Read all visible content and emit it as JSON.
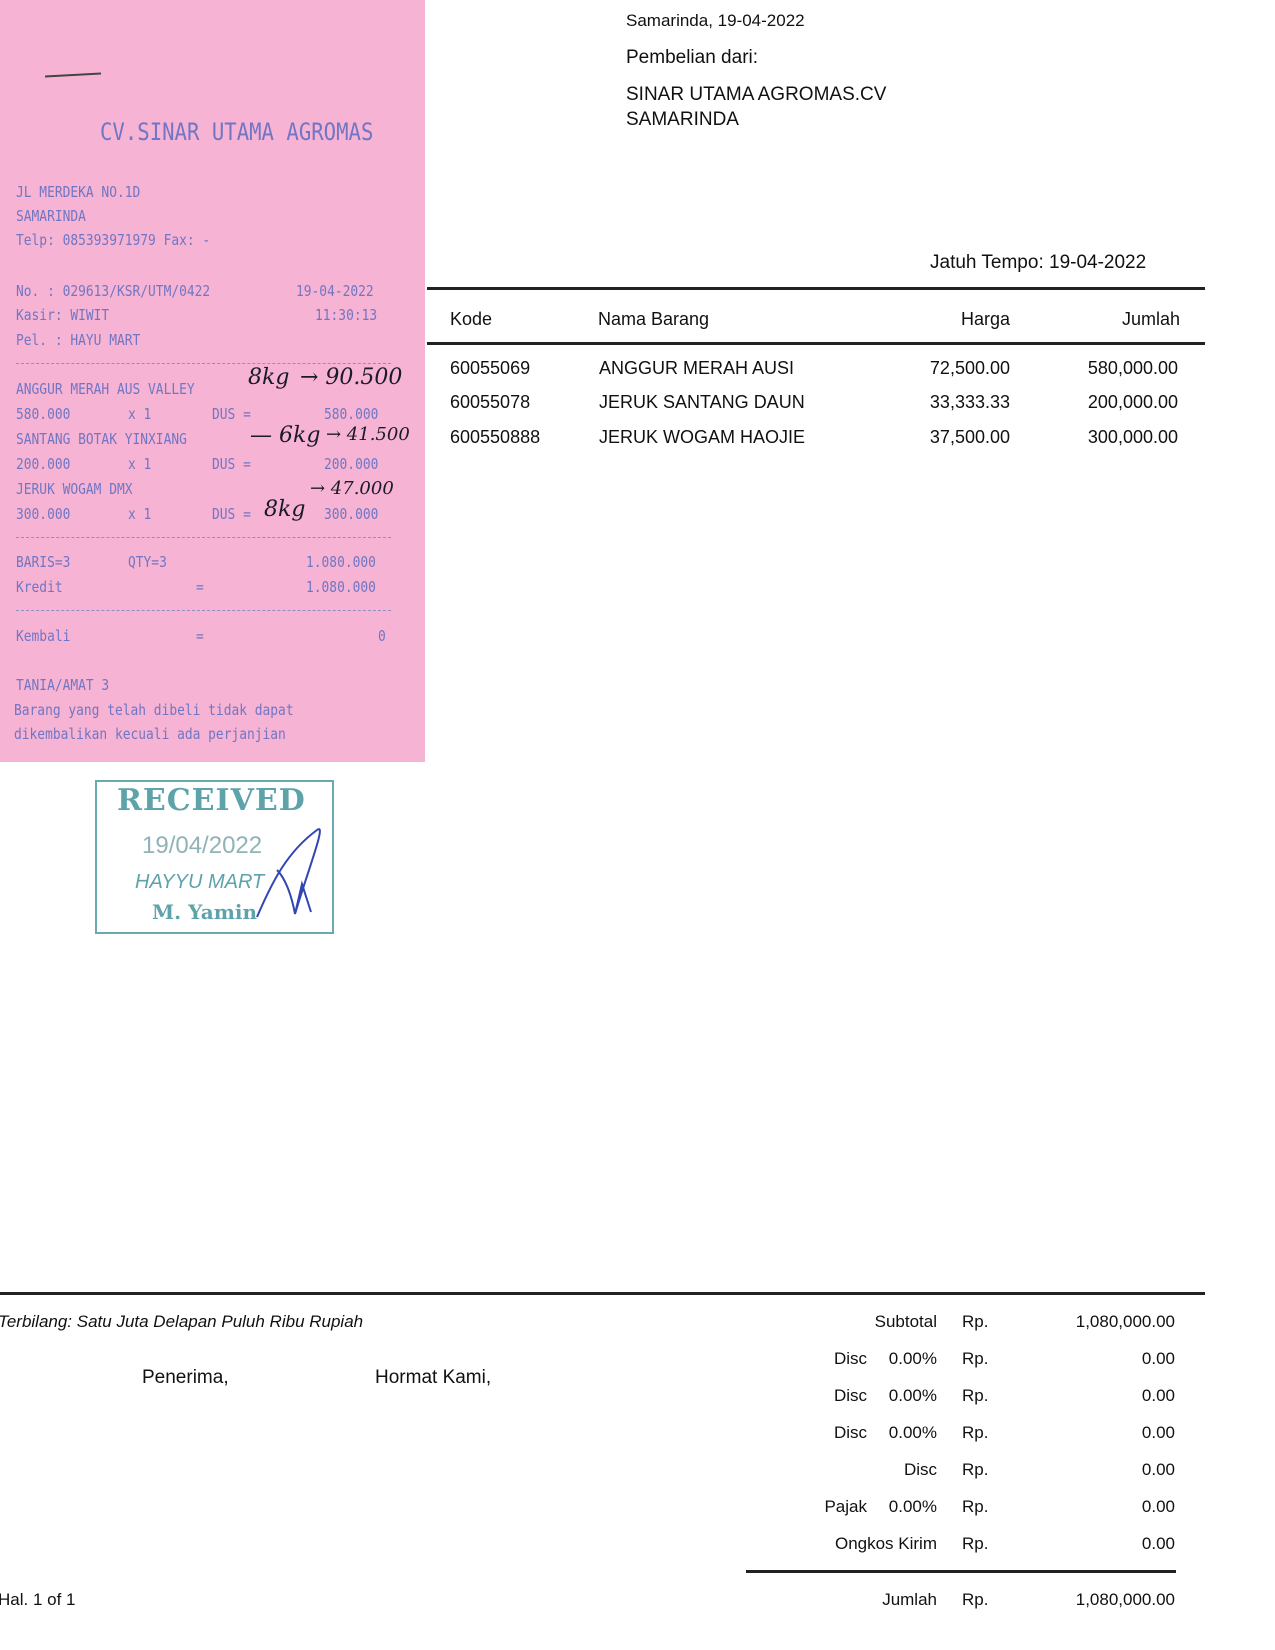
{
  "receipt": {
    "company": "CV.SINAR UTAMA AGROMAS",
    "address": "JL MERDEKA NO.1D",
    "city": "SAMARINDA",
    "phone": "Telp: 085393971979 Fax: -",
    "number": "No.  : 029613/KSR/UTM/0422",
    "date": "19-04-2022",
    "cashier": "Kasir: WIWIT",
    "time": "11:30:13",
    "customer": "Pel. : HAYU MART",
    "items": [
      {
        "name": "ANGGUR MERAH AUS VALLEY",
        "price": "580.000",
        "qty": "x 1",
        "unit": "DUS =",
        "total": "580.000",
        "note_left": "8kg",
        "note_right": "→ 90.500"
      },
      {
        "name": "SANTANG BOTAK YINXIANG",
        "price": "200.000",
        "qty": "x 1",
        "unit": "DUS =",
        "total": "200.000",
        "note_left": "— 6kg",
        "note_right": "→ 41.500"
      },
      {
        "name": "JERUK WOGAM DMX",
        "price": "300.000",
        "qty": "x 1",
        "unit": "DUS =",
        "total": "300.000",
        "note_left": "8kg",
        "note_right": "→ 47.000"
      }
    ],
    "baris": "BARIS=3",
    "qty_total": "QTY=3",
    "grand_total": "1.080.000",
    "payment_label": "Kredit",
    "eq": "=",
    "payment_value": "1.080.000",
    "change_label": "Kembali",
    "change_value": "0",
    "footer_code": "TANIA/AMAT 3",
    "footer_line1": "Barang yang telah dibeli tidak dapat",
    "footer_line2": "dikembalikan kecuali ada perjanjian",
    "stamp": {
      "title": "RECEIVED",
      "date": "19/04/2022",
      "name": "HAYYU MART",
      "signer": "M. Yamin"
    }
  },
  "invoice": {
    "place_date": "Samarinda, 19-04-2022",
    "from_label": "Pembelian dari:",
    "supplier_name": "SINAR UTAMA AGROMAS.CV",
    "supplier_city": "SAMARINDA",
    "due_date": "Jatuh Tempo: 19-04-2022",
    "columns": [
      "Kode",
      "Nama Barang",
      "Harga",
      "Jumlah"
    ],
    "rows": [
      [
        "60055069",
        "ANGGUR MERAH AUSI",
        "72,500.00",
        "580,000.00"
      ],
      [
        "60055078",
        "JERUK SANTANG DAUN",
        "33,333.33",
        "200,000.00"
      ],
      [
        "600550888",
        "JERUK WOGAM HAOJIE",
        "37,500.00",
        "300,000.00"
      ]
    ],
    "terbilang": "Terbilang: Satu Juta Delapan Puluh Ribu Rupiah",
    "receiver_label": "Penerima,",
    "regards_label": "Hormat Kami,",
    "page": "Hal. 1 of 1",
    "currency": "Rp.",
    "summary": [
      {
        "label": "Subtotal",
        "pct": "",
        "value": "1,080,000.00"
      },
      {
        "label": "Disc",
        "pct": "0.00%",
        "value": "0.00"
      },
      {
        "label": "Disc",
        "pct": "0.00%",
        "value": "0.00"
      },
      {
        "label": "Disc",
        "pct": "0.00%",
        "value": "0.00"
      },
      {
        "label": "Disc",
        "pct": "",
        "value": "0.00"
      },
      {
        "label": "Pajak",
        "pct": "0.00%",
        "value": "0.00"
      },
      {
        "label": "Ongkos Kirim",
        "pct": "",
        "value": "0.00"
      }
    ],
    "total_label": "Jumlah",
    "total_value": "1,080,000.00"
  }
}
